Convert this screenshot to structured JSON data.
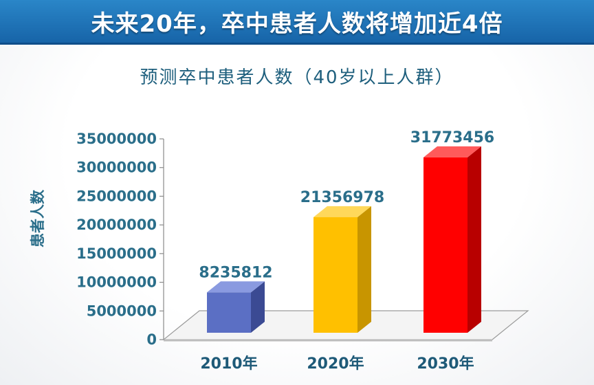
{
  "header": {
    "title": "未来20年，卒中患者人数将增加近4倍"
  },
  "chart_data": {
    "type": "bar",
    "title": "预测卒中患者人数（40岁以上人群）",
    "xlabel": "",
    "ylabel": "患者人数",
    "categories": [
      "2010年",
      "2020年",
      "2030年"
    ],
    "values": [
      8235812,
      21356978,
      31773456
    ],
    "data_labels": [
      "8235812",
      "21356978",
      "31773456"
    ],
    "ylim": [
      0,
      35000000
    ],
    "yticks": [
      0,
      5000000,
      10000000,
      15000000,
      20000000,
      25000000,
      30000000,
      35000000
    ],
    "ytick_labels": [
      "0",
      "5000000",
      "10000000",
      "15000000",
      "20000000",
      "25000000",
      "30000000",
      "35000000"
    ],
    "colors": {
      "bars": [
        "#5b6fc4",
        "#ffc000",
        "#ff0000"
      ],
      "bar_sides": [
        "#3b4a93",
        "#c89500",
        "#b80000"
      ],
      "bar_tops": [
        "#8a9ae0",
        "#ffd85a",
        "#ff5a5a"
      ],
      "text": "#2a6e8a"
    },
    "grid": false,
    "style": "3d"
  }
}
